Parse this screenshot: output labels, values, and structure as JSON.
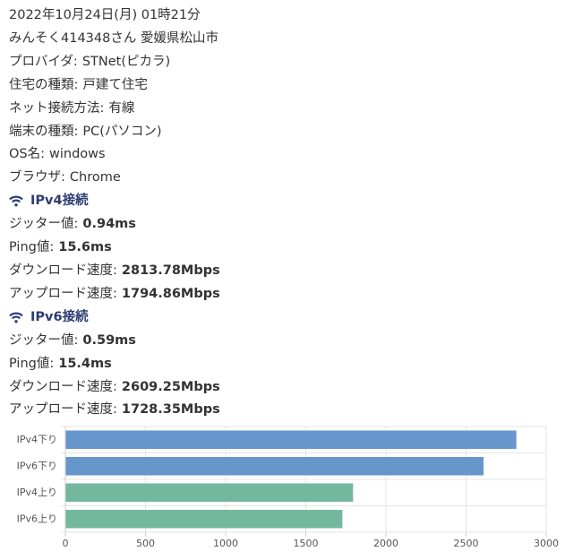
{
  "header": {
    "datetime": "2022年10月24日(月) 01時21分",
    "user": "みんそく414348さん 愛媛県松山市"
  },
  "info": [
    {
      "label": "プロバイダ:",
      "value": "STNet(ピカラ)"
    },
    {
      "label": "住宅の種類:",
      "value": "戸建て住宅"
    },
    {
      "label": "ネット接続方法:",
      "value": "有線"
    },
    {
      "label": "端末の種類:",
      "value": "PC(パソコン)"
    },
    {
      "label": "OS名:",
      "value": "windows"
    },
    {
      "label": "ブラウザ:",
      "value": "Chrome"
    }
  ],
  "sections": [
    {
      "title": "IPv4接続",
      "rows": [
        {
          "label": "ジッター値:",
          "value": "0.94ms"
        },
        {
          "label": "Ping値:",
          "value": "15.6ms"
        },
        {
          "label": "ダウンロード速度:",
          "value": "2813.78Mbps"
        },
        {
          "label": "アップロード速度:",
          "value": "1794.86Mbps"
        }
      ]
    },
    {
      "title": "IPv6接続",
      "rows": [
        {
          "label": "ジッター値:",
          "value": "0.59ms"
        },
        {
          "label": "Ping値:",
          "value": "15.4ms"
        },
        {
          "label": "ダウンロード速度:",
          "value": "2609.25Mbps"
        },
        {
          "label": "アップロード速度:",
          "value": "1728.35Mbps"
        }
      ]
    }
  ],
  "chart_data": {
    "type": "hbar",
    "categories": [
      "IPv4下り",
      "IPv6下り",
      "IPv4上り",
      "IPv6上り"
    ],
    "values": [
      2813.78,
      2609.25,
      1794.86,
      1728.35
    ],
    "colors": [
      "#6796cc",
      "#6796cc",
      "#72b79e",
      "#72b79e"
    ],
    "xlim": [
      0,
      3000
    ],
    "xticks": [
      0,
      500,
      1000,
      1500,
      2000,
      2500,
      3000
    ],
    "grid": true
  }
}
